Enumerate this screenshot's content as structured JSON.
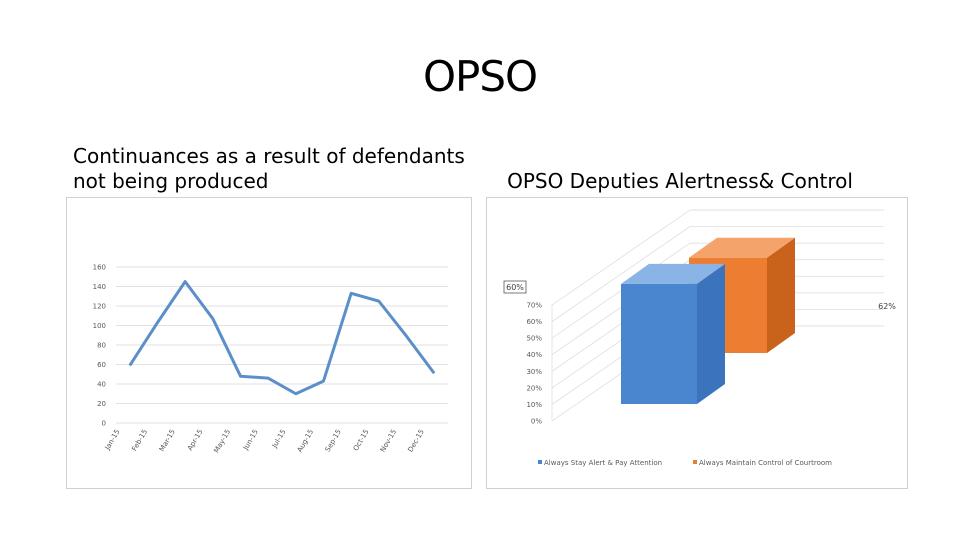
{
  "slide_title": "OPSO",
  "chart_data": [
    {
      "type": "line",
      "title": "Continuances as a result of defendants not being produced",
      "categories": [
        "Jan-15",
        "Feb-15",
        "Mar-15",
        "Apr-15",
        "May-15",
        "Jun-15",
        "Jul-15",
        "Aug-15",
        "Sep-15",
        "Oct-15",
        "Nov-15",
        "Dec-15"
      ],
      "values": [
        59,
        103,
        145,
        107,
        48,
        46,
        30,
        43,
        133,
        125,
        89,
        51
      ],
      "ylim": [
        0,
        160
      ],
      "yticks": [
        0,
        20,
        40,
        60,
        80,
        100,
        120,
        140,
        160
      ],
      "grid": true,
      "color": "#5b8fc9"
    },
    {
      "type": "bar",
      "title": "OPSO Deputies Alertness& Control",
      "categories": [
        "Always Stay Alert & Pay Attention",
        "Always Maintain Control of Courtroom"
      ],
      "values": [
        60,
        62
      ],
      "data_labels": [
        "60%",
        "62%"
      ],
      "yticks": [
        "0%",
        "10%",
        "20%",
        "30%",
        "40%",
        "50%",
        "60%",
        "70%"
      ],
      "ylim": [
        0,
        70
      ],
      "legend_position": "bottom",
      "colors": [
        "#4a86cf",
        "#ed7d31"
      ]
    }
  ]
}
